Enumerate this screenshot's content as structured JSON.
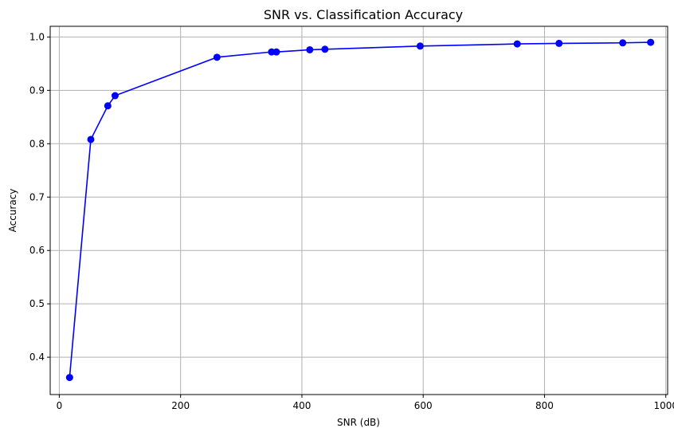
{
  "chart_data": {
    "type": "line",
    "title": "SNR vs. Classification Accuracy",
    "xlabel": "SNR (dB)",
    "ylabel": "Accuracy",
    "xlim": [
      -15,
      1003
    ],
    "ylim": [
      0.33,
      1.02
    ],
    "x_ticks": [
      0,
      200,
      400,
      600,
      800,
      1000
    ],
    "y_ticks": [
      0.4,
      0.5,
      0.6,
      0.7,
      0.8,
      0.9,
      1.0
    ],
    "grid": true,
    "series": [
      {
        "color": "#0000ff",
        "marker": "circle",
        "x": [
          17,
          52,
          80,
          92,
          260,
          350,
          358,
          413,
          438,
          595,
          755,
          824,
          929,
          975
        ],
        "y": [
          0.362,
          0.808,
          0.871,
          0.89,
          0.962,
          0.972,
          0.972,
          0.976,
          0.977,
          0.983,
          0.987,
          0.988,
          0.989,
          0.99
        ]
      }
    ]
  }
}
